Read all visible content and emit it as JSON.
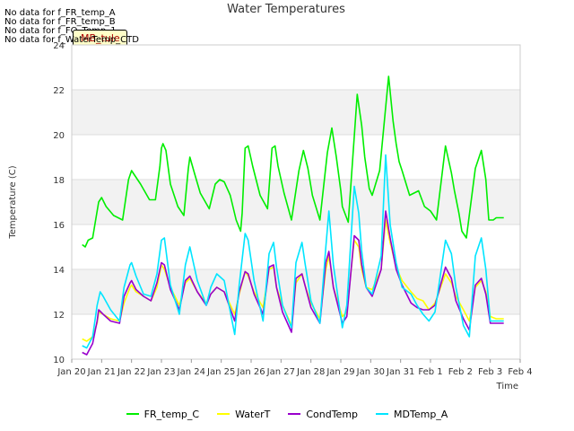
{
  "no_data_lines": [
    "No data for f_FR_temp_A",
    "No data for f_FR_temp_B",
    "No data for f_FO_Temp_1",
    "No data for f_WaterTemp_CTD"
  ],
  "tooltip_label": "MB_tule",
  "chart_data": {
    "type": "line",
    "title": "Water Temperatures",
    "xlabel": "Time",
    "ylabel": "Temperature (C)",
    "ylim": [
      10,
      24
    ],
    "yticks": [
      10,
      12,
      14,
      16,
      18,
      20,
      22,
      24
    ],
    "xlim": [
      0,
      15
    ],
    "xticks": [
      {
        "pos": 0,
        "label": "Jan 20"
      },
      {
        "pos": 1,
        "label": "Jan 21"
      },
      {
        "pos": 2,
        "label": "Jan 22"
      },
      {
        "pos": 3,
        "label": "Jan 23"
      },
      {
        "pos": 4,
        "label": "Jan 24"
      },
      {
        "pos": 5,
        "label": "Jan 25"
      },
      {
        "pos": 6,
        "label": "Jan 26"
      },
      {
        "pos": 7,
        "label": "Jan 27"
      },
      {
        "pos": 8,
        "label": "Jan 28"
      },
      {
        "pos": 9,
        "label": "Jan 29"
      },
      {
        "pos": 10,
        "label": "Jan 30"
      },
      {
        "pos": 11,
        "label": "Jan 31"
      },
      {
        "pos": 12,
        "label": "Feb 1"
      },
      {
        "pos": 13,
        "label": "Feb 2"
      },
      {
        "pos": 14,
        "label": "Feb 3"
      },
      {
        "pos": 15,
        "label": "Feb 4"
      }
    ],
    "grid": true,
    "bands": "alternating gray horizontal bands",
    "legend_position": "bottom",
    "series": [
      {
        "name": "FR_temp_C",
        "color": "#00ee00",
        "x": [
          0.35,
          0.45,
          0.55,
          0.7,
          0.9,
          1.0,
          1.15,
          1.4,
          1.7,
          1.9,
          2.0,
          2.1,
          2.3,
          2.6,
          2.8,
          2.95,
          3.0,
          3.05,
          3.15,
          3.3,
          3.55,
          3.75,
          3.9,
          3.95,
          4.1,
          4.3,
          4.6,
          4.8,
          4.95,
          5.1,
          5.3,
          5.5,
          5.65,
          5.7,
          5.8,
          5.9,
          6.05,
          6.3,
          6.55,
          6.7,
          6.8,
          6.9,
          7.1,
          7.35,
          7.6,
          7.75,
          7.9,
          8.05,
          8.3,
          8.55,
          8.7,
          8.85,
          9.0,
          9.05,
          9.25,
          9.55,
          9.7,
          9.8,
          9.95,
          10.05,
          10.3,
          10.6,
          10.75,
          10.85,
          10.95,
          11.05,
          11.3,
          11.6,
          11.8,
          12.0,
          12.2,
          12.5,
          12.7,
          12.8,
          12.95,
          13.05,
          13.2,
          13.5,
          13.7,
          13.85,
          13.95,
          14.1,
          14.2,
          14.35,
          14.45
        ],
        "y": [
          15.1,
          15.0,
          15.3,
          15.4,
          17.0,
          17.2,
          16.8,
          16.4,
          16.2,
          18.0,
          18.4,
          18.2,
          17.8,
          17.1,
          17.1,
          18.6,
          19.4,
          19.6,
          19.3,
          17.8,
          16.8,
          16.4,
          18.5,
          19.0,
          18.3,
          17.4,
          16.7,
          17.8,
          18.0,
          17.9,
          17.3,
          16.2,
          15.7,
          16.5,
          19.4,
          19.5,
          18.6,
          17.3,
          16.7,
          19.4,
          19.5,
          18.6,
          17.4,
          16.2,
          18.4,
          19.3,
          18.5,
          17.3,
          16.2,
          19.2,
          20.3,
          19.0,
          17.5,
          16.8,
          16.1,
          21.8,
          20.4,
          19.0,
          17.6,
          17.3,
          18.4,
          22.6,
          20.6,
          19.6,
          18.8,
          18.4,
          17.3,
          17.5,
          16.8,
          16.6,
          16.2,
          19.5,
          18.3,
          17.5,
          16.5,
          15.7,
          15.4,
          18.5,
          19.3,
          18.0,
          16.2,
          16.2,
          16.3,
          16.3,
          16.3
        ]
      },
      {
        "name": "WaterT",
        "color": "#ffff00",
        "x": [
          0.35,
          0.5,
          0.7,
          0.85,
          0.9,
          1.05,
          1.3,
          1.6,
          1.75,
          1.95,
          2.0,
          2.15,
          2.4,
          2.65,
          2.85,
          3.0,
          3.1,
          3.3,
          3.6,
          3.8,
          3.95,
          4.2,
          4.5,
          4.65,
          4.85,
          5.1,
          5.45,
          5.6,
          5.8,
          5.9,
          6.1,
          6.4,
          6.6,
          6.75,
          6.85,
          7.05,
          7.35,
          7.5,
          7.7,
          7.8,
          8.0,
          8.3,
          8.5,
          8.6,
          8.75,
          9.05,
          9.2,
          9.45,
          9.6,
          9.7,
          9.85,
          10.05,
          10.35,
          10.5,
          10.65,
          10.85,
          11.05,
          11.35,
          11.55,
          11.75,
          11.95,
          12.15,
          12.5,
          12.7,
          12.85,
          13.1,
          13.3,
          13.5,
          13.7,
          13.85,
          14.0,
          14.2,
          14.35,
          14.45
        ],
        "y": [
          10.9,
          10.8,
          11.0,
          11.6,
          12.1,
          12.0,
          11.8,
          11.7,
          12.5,
          13.2,
          13.3,
          13.0,
          12.8,
          12.6,
          13.2,
          14.2,
          14.0,
          13.2,
          12.4,
          13.4,
          13.6,
          13.0,
          12.5,
          12.9,
          13.2,
          13.0,
          12.0,
          12.9,
          13.9,
          13.7,
          13.0,
          12.3,
          14.0,
          14.1,
          13.2,
          12.4,
          11.5,
          13.4,
          13.8,
          13.3,
          12.5,
          11.8,
          14.0,
          14.6,
          13.2,
          11.9,
          12.1,
          15.3,
          15.0,
          14.0,
          13.2,
          13.1,
          14.0,
          16.2,
          15.2,
          14.1,
          13.5,
          13.0,
          12.7,
          12.6,
          12.2,
          12.5,
          13.8,
          13.4,
          12.8,
          12.2,
          11.7,
          13.2,
          13.5,
          13.0,
          11.9,
          11.8,
          11.8,
          11.8
        ]
      },
      {
        "name": "CondTemp",
        "color": "#9900cc",
        "x": [
          0.35,
          0.5,
          0.7,
          0.85,
          0.9,
          1.05,
          1.3,
          1.6,
          1.75,
          1.95,
          2.0,
          2.15,
          2.4,
          2.65,
          2.85,
          3.0,
          3.1,
          3.3,
          3.6,
          3.8,
          3.95,
          4.2,
          4.5,
          4.65,
          4.85,
          5.1,
          5.45,
          5.6,
          5.8,
          5.9,
          6.1,
          6.4,
          6.6,
          6.75,
          6.85,
          7.05,
          7.35,
          7.5,
          7.7,
          7.8,
          8.0,
          8.3,
          8.5,
          8.6,
          8.75,
          9.05,
          9.2,
          9.45,
          9.6,
          9.7,
          9.85,
          10.05,
          10.35,
          10.5,
          10.65,
          10.85,
          11.05,
          11.35,
          11.55,
          11.75,
          11.95,
          12.15,
          12.5,
          12.7,
          12.85,
          13.1,
          13.3,
          13.5,
          13.7,
          13.85,
          14.0,
          14.2,
          14.35,
          14.45
        ],
        "y": [
          10.3,
          10.2,
          10.7,
          11.7,
          12.2,
          12.0,
          11.7,
          11.6,
          12.8,
          13.4,
          13.5,
          13.1,
          12.8,
          12.6,
          13.4,
          14.3,
          14.2,
          13.1,
          12.2,
          13.5,
          13.7,
          13.0,
          12.4,
          12.9,
          13.2,
          13.0,
          11.7,
          13.0,
          13.9,
          13.8,
          12.9,
          12.0,
          14.1,
          14.2,
          13.2,
          12.1,
          11.2,
          13.6,
          13.8,
          13.3,
          12.3,
          11.6,
          14.3,
          14.8,
          13.2,
          11.6,
          11.9,
          15.5,
          15.3,
          14.2,
          13.2,
          12.8,
          14.0,
          16.6,
          15.4,
          14.0,
          13.3,
          12.5,
          12.3,
          12.2,
          12.2,
          12.4,
          14.1,
          13.6,
          12.6,
          11.8,
          11.3,
          13.3,
          13.6,
          12.9,
          11.6,
          11.6,
          11.6,
          11.6
        ]
      },
      {
        "name": "MDTemp_A",
        "color": "#00e5ff",
        "x": [
          0.35,
          0.5,
          0.7,
          0.85,
          0.95,
          1.05,
          1.3,
          1.6,
          1.75,
          1.95,
          2.0,
          2.15,
          2.4,
          2.65,
          2.85,
          3.0,
          3.1,
          3.3,
          3.6,
          3.8,
          3.95,
          4.2,
          4.5,
          4.65,
          4.85,
          5.1,
          5.45,
          5.6,
          5.8,
          5.9,
          6.1,
          6.4,
          6.6,
          6.75,
          6.85,
          7.05,
          7.35,
          7.5,
          7.7,
          7.8,
          8.0,
          8.3,
          8.5,
          8.6,
          8.75,
          9.05,
          9.2,
          9.45,
          9.6,
          9.7,
          9.85,
          10.05,
          10.35,
          10.5,
          10.65,
          10.85,
          11.05,
          11.35,
          11.55,
          11.75,
          11.95,
          12.15,
          12.5,
          12.7,
          12.85,
          13.1,
          13.3,
          13.5,
          13.7,
          13.85,
          14.0,
          14.2,
          14.35,
          14.45
        ],
        "y": [
          10.6,
          10.5,
          11.0,
          12.4,
          13.0,
          12.8,
          12.2,
          11.7,
          13.2,
          14.2,
          14.3,
          13.7,
          12.9,
          12.8,
          13.8,
          15.3,
          15.4,
          13.3,
          12.0,
          14.2,
          15.0,
          13.5,
          12.4,
          13.2,
          13.8,
          13.5,
          11.1,
          13.3,
          15.6,
          15.3,
          13.5,
          11.7,
          14.7,
          15.2,
          14.1,
          12.4,
          11.4,
          14.3,
          15.2,
          14.3,
          12.6,
          11.6,
          15.0,
          16.6,
          14.2,
          11.4,
          12.4,
          17.7,
          16.5,
          14.8,
          13.2,
          12.9,
          14.6,
          19.1,
          16.0,
          14.3,
          13.2,
          12.9,
          12.4,
          12.0,
          11.7,
          12.1,
          15.3,
          14.7,
          13.2,
          11.5,
          11.0,
          14.6,
          15.4,
          14.0,
          11.7,
          11.7,
          11.7,
          11.7
        ]
      }
    ]
  }
}
